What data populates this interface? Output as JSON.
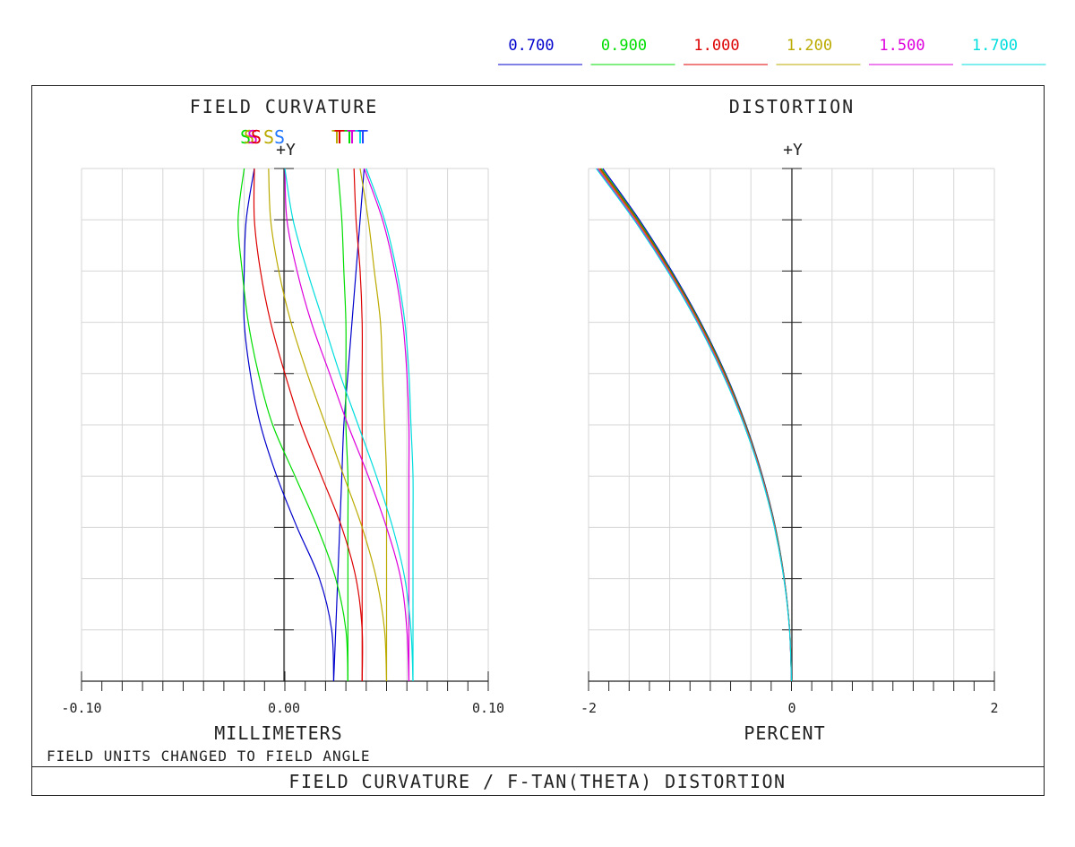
{
  "legend": [
    {
      "label": "0.700",
      "color": "#0000cc"
    },
    {
      "label": "0.900",
      "color": "#00dd00"
    },
    {
      "label": "1.000",
      "color": "#dd0000"
    },
    {
      "label": "1.200",
      "color": "#bbaa00"
    },
    {
      "label": "1.500",
      "color": "#dd00dd"
    },
    {
      "label": "1.700",
      "color": "#00dddd"
    }
  ],
  "footer": {
    "units_note": "FIELD UNITS CHANGED TO FIELD ANGLE",
    "title": "FIELD CURVATURE / F-TAN(THETA) DISTORTION"
  },
  "chart_data": [
    {
      "type": "line",
      "title": "FIELD CURVATURE",
      "xlabel": "MILLIMETERS",
      "ylabel": "+Y",
      "xlim": [
        -0.1,
        0.1
      ],
      "ylim": [
        0,
        1
      ],
      "x_ticks": [
        "-0.10",
        "0.00",
        "0.10"
      ],
      "grid": true,
      "sagittal_marker": "S",
      "tangential_marker": "T",
      "y": [
        0,
        0.1,
        0.2,
        0.3,
        0.4,
        0.5,
        0.6,
        0.7,
        0.8,
        0.9,
        1.0
      ],
      "series": [
        {
          "name": "0.700",
          "kind": "S",
          "x": [
            0.024,
            0.023,
            0.017,
            0.006,
            -0.004,
            -0.012,
            -0.017,
            -0.02,
            -0.02,
            -0.019,
            -0.015
          ]
        },
        {
          "name": "0.700",
          "kind": "T",
          "x": [
            0.024,
            0.025,
            0.026,
            0.027,
            0.028,
            0.029,
            0.031,
            0.033,
            0.035,
            0.037,
            0.039
          ]
        },
        {
          "name": "0.900",
          "kind": "S",
          "x": [
            0.031,
            0.03,
            0.025,
            0.016,
            0.005,
            -0.006,
            -0.013,
            -0.018,
            -0.021,
            -0.023,
            -0.02
          ]
        },
        {
          "name": "0.900",
          "kind": "T",
          "x": [
            0.031,
            0.031,
            0.031,
            0.031,
            0.031,
            0.03,
            0.03,
            0.03,
            0.029,
            0.028,
            0.026
          ]
        },
        {
          "name": "1.000",
          "kind": "S",
          "x": [
            0.038,
            0.038,
            0.035,
            0.028,
            0.018,
            0.008,
            0.0,
            -0.007,
            -0.012,
            -0.015,
            -0.015
          ]
        },
        {
          "name": "1.000",
          "kind": "T",
          "x": [
            0.038,
            0.038,
            0.038,
            0.038,
            0.038,
            0.038,
            0.038,
            0.038,
            0.037,
            0.035,
            0.034
          ]
        },
        {
          "name": "1.200",
          "kind": "S",
          "x": [
            0.05,
            0.049,
            0.045,
            0.038,
            0.029,
            0.02,
            0.011,
            0.003,
            -0.003,
            -0.007,
            -0.008
          ]
        },
        {
          "name": "1.200",
          "kind": "T",
          "x": [
            0.05,
            0.05,
            0.05,
            0.05,
            0.05,
            0.049,
            0.048,
            0.047,
            0.044,
            0.041,
            0.037
          ]
        },
        {
          "name": "1.500",
          "kind": "S",
          "x": [
            0.061,
            0.06,
            0.057,
            0.05,
            0.041,
            0.031,
            0.022,
            0.013,
            0.006,
            0.001,
            0.0
          ]
        },
        {
          "name": "1.500",
          "kind": "T",
          "x": [
            0.061,
            0.061,
            0.061,
            0.061,
            0.061,
            0.061,
            0.06,
            0.058,
            0.054,
            0.048,
            0.039
          ]
        },
        {
          "name": "1.700",
          "kind": "S",
          "x": [
            0.063,
            0.062,
            0.059,
            0.053,
            0.045,
            0.036,
            0.027,
            0.019,
            0.011,
            0.004,
            0.0
          ]
        },
        {
          "name": "1.700",
          "kind": "T",
          "x": [
            0.063,
            0.063,
            0.063,
            0.063,
            0.063,
            0.062,
            0.061,
            0.059,
            0.055,
            0.049,
            0.04
          ]
        }
      ]
    },
    {
      "type": "line",
      "title": "DISTORTION",
      "xlabel": "PERCENT",
      "ylabel": "+Y",
      "xlim": [
        -2,
        2
      ],
      "ylim": [
        0,
        1
      ],
      "x_ticks": [
        "-2",
        "0",
        "2"
      ],
      "grid": true,
      "y": [
        0,
        0.1,
        0.2,
        0.3,
        0.4,
        0.5,
        0.6,
        0.7,
        0.8,
        0.9,
        1.0
      ],
      "series": [
        {
          "name": "0.700",
          "x": [
            0,
            -0.018,
            -0.07,
            -0.158,
            -0.285,
            -0.448,
            -0.65,
            -0.895,
            -1.18,
            -1.5,
            -1.86
          ]
        },
        {
          "name": "0.900",
          "x": [
            0,
            -0.018,
            -0.071,
            -0.16,
            -0.288,
            -0.452,
            -0.656,
            -0.902,
            -1.19,
            -1.512,
            -1.875
          ]
        },
        {
          "name": "1.000",
          "x": [
            0,
            -0.018,
            -0.072,
            -0.162,
            -0.29,
            -0.456,
            -0.662,
            -0.909,
            -1.198,
            -1.523,
            -1.888
          ]
        },
        {
          "name": "1.200",
          "x": [
            0,
            -0.018,
            -0.073,
            -0.164,
            -0.293,
            -0.46,
            -0.668,
            -0.916,
            -1.206,
            -1.533,
            -1.9
          ]
        },
        {
          "name": "1.500",
          "x": [
            0,
            -0.019,
            -0.074,
            -0.166,
            -0.296,
            -0.464,
            -0.674,
            -0.923,
            -1.214,
            -1.543,
            -1.912
          ]
        },
        {
          "name": "1.700",
          "x": [
            0,
            -0.019,
            -0.075,
            -0.168,
            -0.299,
            -0.468,
            -0.68,
            -0.93,
            -1.222,
            -1.553,
            -1.924
          ]
        }
      ]
    }
  ]
}
